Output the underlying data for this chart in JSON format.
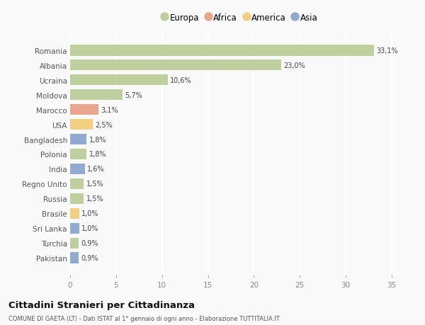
{
  "countries": [
    "Romania",
    "Albania",
    "Ucraina",
    "Moldova",
    "Marocco",
    "USA",
    "Bangladesh",
    "Polonia",
    "India",
    "Regno Unito",
    "Russia",
    "Brasile",
    "Sri Lanka",
    "Turchia",
    "Pakistan"
  ],
  "values": [
    33.1,
    23.0,
    10.6,
    5.7,
    3.1,
    2.5,
    1.8,
    1.8,
    1.6,
    1.5,
    1.5,
    1.0,
    1.0,
    0.9,
    0.9
  ],
  "labels": [
    "33,1%",
    "23,0%",
    "10,6%",
    "5,7%",
    "3,1%",
    "2,5%",
    "1,8%",
    "1,8%",
    "1,6%",
    "1,5%",
    "1,5%",
    "1,0%",
    "1,0%",
    "0,9%",
    "0,9%"
  ],
  "categories": [
    "Europa",
    "Europa",
    "Europa",
    "Europa",
    "Africa",
    "America",
    "Asia",
    "Europa",
    "Asia",
    "Europa",
    "Europa",
    "America",
    "Asia",
    "Europa",
    "Asia"
  ],
  "colors": {
    "Europa": "#b5c98e",
    "Africa": "#e8967a",
    "America": "#f0c96e",
    "Asia": "#7f9ec9"
  },
  "legend_order": [
    "Europa",
    "Africa",
    "America",
    "Asia"
  ],
  "title": "Cittadini Stranieri per Cittadinanza",
  "subtitle": "COMUNE DI GAETA (LT) - Dati ISTAT al 1° gennaio di ogni anno - Elaborazione TUTTITALIA.IT",
  "xlim": [
    0,
    37
  ],
  "xticks": [
    0,
    5,
    10,
    15,
    20,
    25,
    30,
    35
  ],
  "background_color": "#f9f9f9",
  "grid_color": "#ffffff",
  "bar_height": 0.75
}
